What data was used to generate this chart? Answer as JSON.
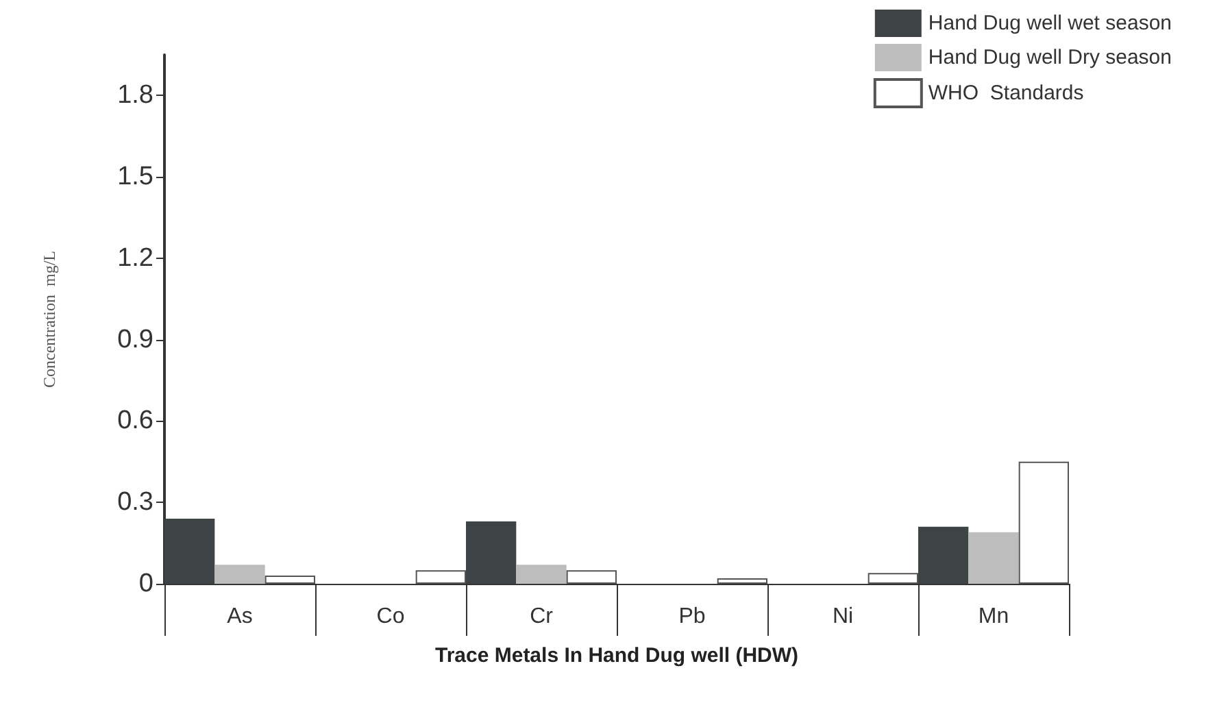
{
  "chart_data": {
    "type": "bar",
    "xlabel": "Trace Metals In Hand Dug well (HDW)",
    "ylabel": "Concentration  mg/L",
    "categories": [
      "As",
      "Co",
      "Cr",
      "Pb",
      "Ni",
      "Mn"
    ],
    "series": [
      {
        "name": "Hand Dug well wet season",
        "color": "#3e4446",
        "values": [
          0.24,
          null,
          0.23,
          null,
          null,
          0.21
        ]
      },
      {
        "name": "Hand Dug well Dry season",
        "color": "#bdbdbd",
        "values": [
          0.07,
          null,
          0.07,
          null,
          null,
          0.19
        ]
      },
      {
        "name": "WHO  Standards",
        "color": "#ffffff",
        "values": [
          0.03,
          0.05,
          0.05,
          0.02,
          0.04,
          0.45
        ]
      }
    ],
    "ylim": [
      0,
      1.95
    ],
    "yticks": [
      0,
      0.3,
      0.6,
      0.9,
      1.2,
      1.5,
      1.8
    ],
    "grid": false,
    "legend": "top right"
  }
}
